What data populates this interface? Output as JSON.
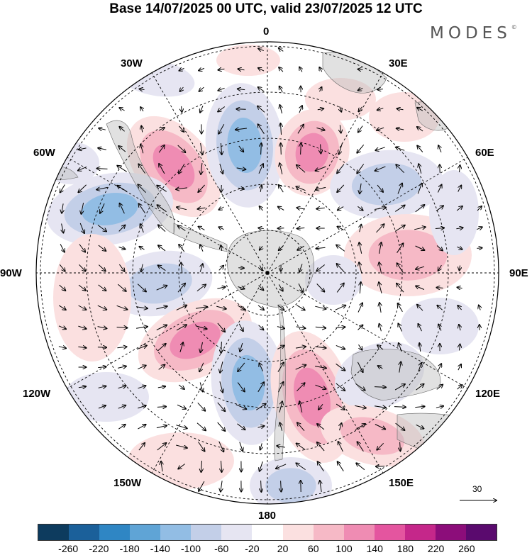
{
  "title": "Base 14/07/2025 00 UTC, valid 23/07/2025 12 UTC",
  "logo": "MODES",
  "logo_mark": "©",
  "map": {
    "projection": "south-polar-stereographic",
    "lon_labels": {
      "top": "0",
      "bottom": "180",
      "left": "90W",
      "right": "90E",
      "upper_left_1": "30W",
      "upper_left_2": "60W",
      "upper_right_1": "30E",
      "upper_right_2": "60E",
      "lower_left_1": "120W",
      "lower_left_2": "150W",
      "lower_right_1": "120E",
      "lower_right_2": "150E"
    },
    "reference_vector": "30"
  },
  "colorbar": {
    "colors": [
      "#0d3b5e",
      "#1b609a",
      "#2f86c4",
      "#5fa4d6",
      "#92bde4",
      "#c3cfe8",
      "#e6e5f2",
      "#ffffff",
      "#fbe0e0",
      "#f6b9c6",
      "#ef8cb3",
      "#e4559f",
      "#c5278a",
      "#8c0d7a",
      "#5a0a6e"
    ],
    "ticks": [
      "-260",
      "-220",
      "-180",
      "-140",
      "-100",
      "-60",
      "-20",
      "20",
      "60",
      "100",
      "140",
      "180",
      "220",
      "260"
    ]
  }
}
